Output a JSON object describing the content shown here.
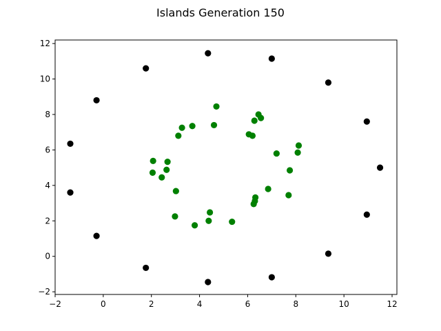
{
  "chart_data": {
    "type": "scatter",
    "title": "Islands Generation 150",
    "xlim": [
      -2,
      12.2
    ],
    "ylim": [
      -2.15,
      12.2
    ],
    "x_ticks": [
      -2,
      0,
      2,
      4,
      6,
      8,
      10,
      12
    ],
    "y_ticks": [
      -2,
      0,
      2,
      4,
      6,
      8,
      10,
      12
    ],
    "grid": false,
    "series": [
      {
        "color": "#000000",
        "points": [
          [
            4.35,
            11.45
          ],
          [
            7.0,
            11.15
          ],
          [
            1.77,
            10.6
          ],
          [
            -0.28,
            8.8
          ],
          [
            9.35,
            9.8
          ],
          [
            10.95,
            7.6
          ],
          [
            -1.37,
            6.35
          ],
          [
            11.5,
            5.0
          ],
          [
            -1.37,
            3.6
          ],
          [
            10.95,
            2.35
          ],
          [
            -0.28,
            1.15
          ],
          [
            9.35,
            0.15
          ],
          [
            1.77,
            -0.65
          ],
          [
            7.0,
            -1.18
          ],
          [
            4.35,
            -1.45
          ]
        ]
      },
      {
        "color": "#008000",
        "points": [
          [
            4.7,
            8.45
          ],
          [
            6.45,
            8.0
          ],
          [
            6.55,
            7.8
          ],
          [
            6.28,
            7.65
          ],
          [
            3.7,
            7.35
          ],
          [
            4.6,
            7.4
          ],
          [
            3.27,
            7.25
          ],
          [
            3.12,
            6.8
          ],
          [
            6.05,
            6.88
          ],
          [
            6.2,
            6.8
          ],
          [
            8.12,
            6.25
          ],
          [
            8.08,
            5.85
          ],
          [
            7.2,
            5.8
          ],
          [
            2.07,
            5.38
          ],
          [
            2.67,
            5.33
          ],
          [
            2.63,
            4.88
          ],
          [
            7.75,
            4.85
          ],
          [
            2.05,
            4.72
          ],
          [
            2.43,
            4.45
          ],
          [
            3.02,
            3.68
          ],
          [
            6.85,
            3.8
          ],
          [
            7.7,
            3.45
          ],
          [
            6.32,
            3.32
          ],
          [
            6.3,
            3.12
          ],
          [
            6.25,
            2.95
          ],
          [
            4.43,
            2.48
          ],
          [
            2.98,
            2.25
          ],
          [
            4.38,
            2.0
          ],
          [
            5.35,
            1.95
          ],
          [
            3.8,
            1.75
          ]
        ]
      }
    ]
  }
}
